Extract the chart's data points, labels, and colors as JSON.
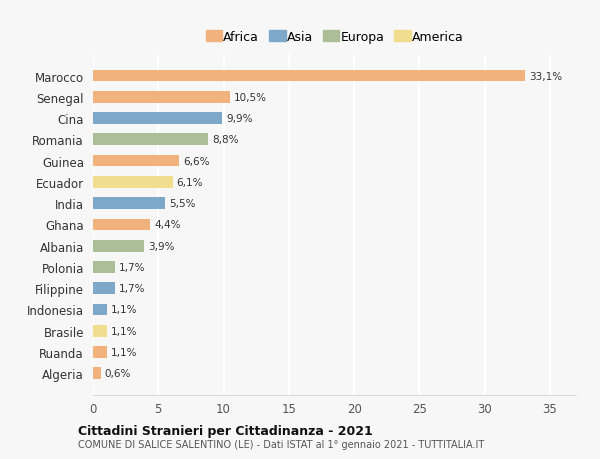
{
  "countries": [
    "Algeria",
    "Ruanda",
    "Brasile",
    "Indonesia",
    "Filippine",
    "Polonia",
    "Albania",
    "Ghana",
    "India",
    "Ecuador",
    "Guinea",
    "Romania",
    "Cina",
    "Senegal",
    "Marocco"
  ],
  "values": [
    0.6,
    1.1,
    1.1,
    1.1,
    1.7,
    1.7,
    3.9,
    4.4,
    5.5,
    6.1,
    6.6,
    8.8,
    9.9,
    10.5,
    33.1
  ],
  "labels": [
    "0,6%",
    "1,1%",
    "1,1%",
    "1,1%",
    "1,7%",
    "1,7%",
    "3,9%",
    "4,4%",
    "5,5%",
    "6,1%",
    "6,6%",
    "8,8%",
    "9,9%",
    "10,5%",
    "33,1%"
  ],
  "continents": [
    "Africa",
    "Africa",
    "America",
    "Asia",
    "Asia",
    "Europa",
    "Europa",
    "Africa",
    "Asia",
    "America",
    "Africa",
    "Europa",
    "Asia",
    "Africa",
    "Africa"
  ],
  "colors": {
    "Africa": "#F2B27E",
    "Asia": "#7EA8C9",
    "Europa": "#ABBE96",
    "America": "#F2DC8E"
  },
  "legend_order": [
    "Africa",
    "Asia",
    "Europa",
    "America"
  ],
  "title1": "Cittadini Stranieri per Cittadinanza - 2021",
  "title2": "COMUNE DI SALICE SALENTINO (LE) - Dati ISTAT al 1° gennaio 2021 - TUTTITALIA.IT",
  "xlim": [
    0,
    37
  ],
  "xticks": [
    0,
    5,
    10,
    15,
    20,
    25,
    30,
    35
  ],
  "background_color": "#f7f7f7",
  "grid_color": "#ffffff",
  "bar_height": 0.55
}
